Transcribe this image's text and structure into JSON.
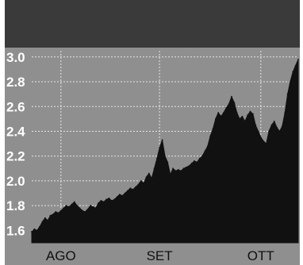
{
  "header": {
    "title": "",
    "subtitle": "",
    "last_value": "",
    "change": ""
  },
  "colors": {
    "panel": "#8f8f8f",
    "area": "#111111",
    "grid": "#e6e6e6",
    "header": "#3a3a3a",
    "text": "#ffffff"
  },
  "chart_data": {
    "type": "area",
    "title": "",
    "xlabel": "",
    "ylabel": "",
    "ylim": [
      1.5,
      3.05
    ],
    "yticks": [
      1.6,
      1.8,
      2.0,
      2.2,
      2.4,
      2.6,
      2.8,
      3.0
    ],
    "ytick_labels": [
      "1.6",
      "1.8",
      "2.0",
      "2.2",
      "2.4",
      "2.6",
      "2.8",
      "3.0"
    ],
    "xlabels": [
      "AGO",
      "SET",
      "OTT"
    ],
    "xlabel_positions": [
      5,
      42,
      80
    ],
    "x_index_range": [
      0,
      100
    ],
    "series": [
      {
        "values": [
          1.59,
          1.61,
          1.6,
          1.63,
          1.67,
          1.7,
          1.68,
          1.72,
          1.73,
          1.75,
          1.74,
          1.76,
          1.78,
          1.8,
          1.79,
          1.81,
          1.83,
          1.8,
          1.78,
          1.76,
          1.75,
          1.77,
          1.8,
          1.79,
          1.78,
          1.82,
          1.84,
          1.83,
          1.85,
          1.86,
          1.84,
          1.85,
          1.87,
          1.89,
          1.88,
          1.9,
          1.92,
          1.94,
          1.93,
          1.95,
          1.97,
          2.0,
          1.98,
          2.03,
          2.06,
          2.02,
          2.1,
          2.18,
          2.27,
          2.33,
          2.2,
          2.15,
          2.05,
          2.1,
          2.08,
          2.09,
          2.08,
          2.1,
          2.11,
          2.12,
          2.14,
          2.16,
          2.15,
          2.18,
          2.2,
          2.24,
          2.28,
          2.36,
          2.42,
          2.5,
          2.55,
          2.52,
          2.55,
          2.59,
          2.62,
          2.68,
          2.63,
          2.55,
          2.5,
          2.52,
          2.48,
          2.53,
          2.56,
          2.54,
          2.45,
          2.4,
          2.35,
          2.32,
          2.3,
          2.4,
          2.45,
          2.48,
          2.43,
          2.4,
          2.44,
          2.55,
          2.7,
          2.8,
          2.88,
          2.93,
          2.98
        ]
      }
    ]
  }
}
